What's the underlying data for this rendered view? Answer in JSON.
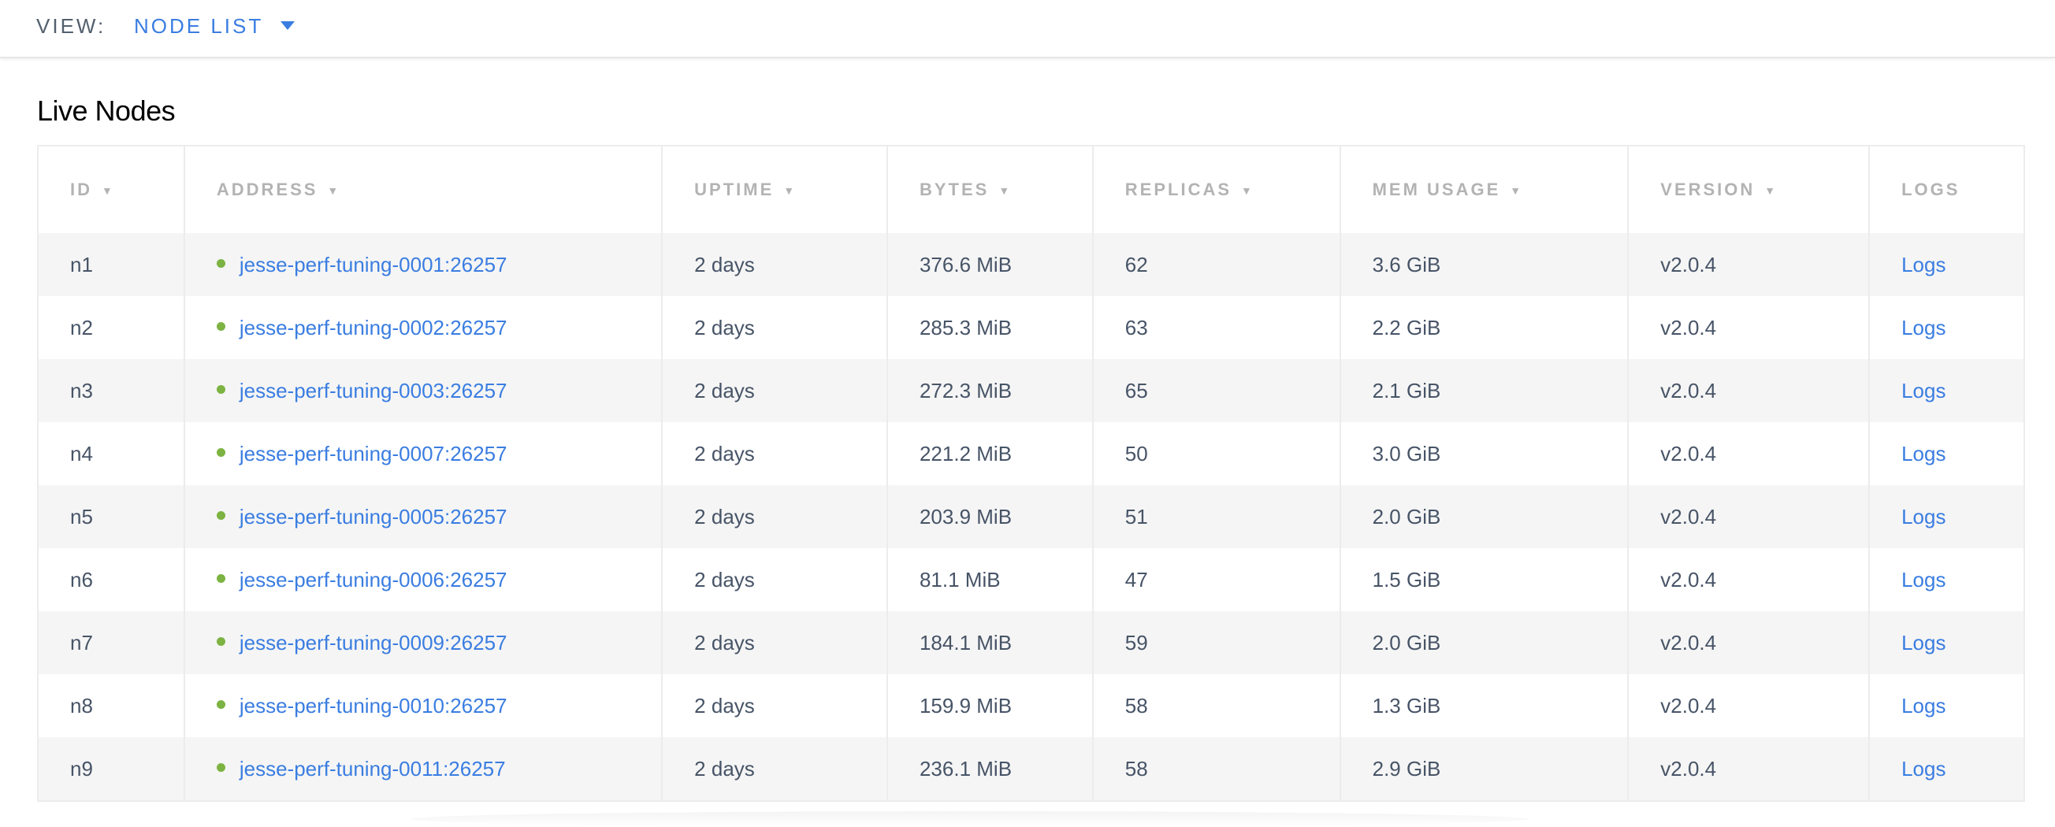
{
  "view": {
    "label": "VIEW:",
    "selected": "NODE LIST",
    "caret_icon": "caret-down-icon"
  },
  "title": "Live Nodes",
  "colors": {
    "accent": "#3a7de1",
    "live_dot": "#7cb342",
    "stripe": "#f5f5f5"
  },
  "columns": [
    {
      "label": "ID",
      "sort": "▼"
    },
    {
      "label": "ADDRESS",
      "sort": "▼"
    },
    {
      "label": "UPTIME",
      "sort": "▼"
    },
    {
      "label": "BYTES",
      "sort": "▼"
    },
    {
      "label": "REPLICAS",
      "sort": "▼"
    },
    {
      "label": "MEM USAGE",
      "sort": "▼"
    },
    {
      "label": "VERSION",
      "sort": "▼"
    },
    {
      "label": "LOGS"
    }
  ],
  "rows": [
    {
      "id": "n1",
      "address": "jesse-perf-tuning-0001:26257",
      "uptime": "2 days",
      "bytes": "376.6 MiB",
      "replicas": "62",
      "mem": "3.6 GiB",
      "version": "v2.0.4",
      "logs": "Logs"
    },
    {
      "id": "n2",
      "address": "jesse-perf-tuning-0002:26257",
      "uptime": "2 days",
      "bytes": "285.3 MiB",
      "replicas": "63",
      "mem": "2.2 GiB",
      "version": "v2.0.4",
      "logs": "Logs"
    },
    {
      "id": "n3",
      "address": "jesse-perf-tuning-0003:26257",
      "uptime": "2 days",
      "bytes": "272.3 MiB",
      "replicas": "65",
      "mem": "2.1 GiB",
      "version": "v2.0.4",
      "logs": "Logs"
    },
    {
      "id": "n4",
      "address": "jesse-perf-tuning-0007:26257",
      "uptime": "2 days",
      "bytes": "221.2 MiB",
      "replicas": "50",
      "mem": "3.0 GiB",
      "version": "v2.0.4",
      "logs": "Logs"
    },
    {
      "id": "n5",
      "address": "jesse-perf-tuning-0005:26257",
      "uptime": "2 days",
      "bytes": "203.9 MiB",
      "replicas": "51",
      "mem": "2.0 GiB",
      "version": "v2.0.4",
      "logs": "Logs"
    },
    {
      "id": "n6",
      "address": "jesse-perf-tuning-0006:26257",
      "uptime": "2 days",
      "bytes": "81.1 MiB",
      "replicas": "47",
      "mem": "1.5 GiB",
      "version": "v2.0.4",
      "logs": "Logs"
    },
    {
      "id": "n7",
      "address": "jesse-perf-tuning-0009:26257",
      "uptime": "2 days",
      "bytes": "184.1 MiB",
      "replicas": "59",
      "mem": "2.0 GiB",
      "version": "v2.0.4",
      "logs": "Logs"
    },
    {
      "id": "n8",
      "address": "jesse-perf-tuning-0010:26257",
      "uptime": "2 days",
      "bytes": "159.9 MiB",
      "replicas": "58",
      "mem": "1.3 GiB",
      "version": "v2.0.4",
      "logs": "Logs"
    },
    {
      "id": "n9",
      "address": "jesse-perf-tuning-0011:26257",
      "uptime": "2 days",
      "bytes": "236.1 MiB",
      "replicas": "58",
      "mem": "2.9 GiB",
      "version": "v2.0.4",
      "logs": "Logs"
    }
  ]
}
